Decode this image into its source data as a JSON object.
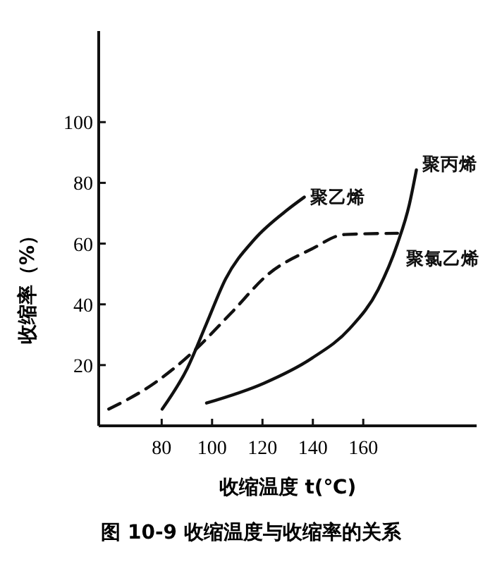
{
  "chart_data": {
    "type": "line",
    "xlabel": "收缩温度 t(℃)",
    "ylabel": "收缩率（%）",
    "xlim": [
      55,
      205
    ],
    "ylim": [
      0,
      130
    ],
    "xticks": [
      80,
      100,
      120,
      140,
      160
    ],
    "yticks": [
      20,
      40,
      60,
      80,
      100
    ],
    "grid": false,
    "marker": "none",
    "series": [
      {
        "name": "聚乙烯",
        "color": "#111111",
        "line_style": "solid",
        "x": [
          80.2,
          90.2,
          97.8,
          105.4,
          116.8,
          130,
          136.6
        ],
        "values": [
          5.5,
          19,
          33.7,
          48.4,
          61.4,
          71.2,
          75.3
        ]
      },
      {
        "name": "聚丙烯",
        "color": "#111111",
        "line_style": "solid",
        "x": [
          97.8,
          120.5,
          139.5,
          154.6,
          166,
          173.6,
          178.3,
          181.1
        ],
        "values": [
          7.5,
          14,
          22.2,
          32,
          45,
          60,
          72.9,
          84.3
        ]
      },
      {
        "name": "聚氯乙烯",
        "color": "#111111",
        "line_style": "dashed",
        "x": [
          59,
          77,
          92,
          107.3,
          122.4,
          139.5,
          152.7,
          173.6
        ],
        "values": [
          5.5,
          14,
          24,
          36.9,
          50,
          58.2,
          63,
          63.4
        ]
      }
    ],
    "annotations": [
      "图 10-9  收缩温度与收缩率的关系"
    ]
  }
}
